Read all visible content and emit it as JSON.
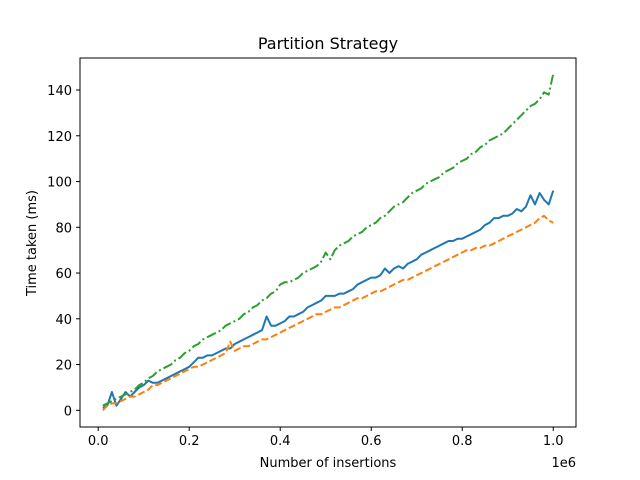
{
  "chart_data": {
    "type": "line",
    "title": "Partition Strategy",
    "xlabel": "Number of insertions",
    "ylabel": "Time taken (ms)",
    "x_offset_label": "1e6",
    "xlim": [
      -0.04,
      1.05
    ],
    "ylim": [
      -7.3,
      154
    ],
    "xticks": [
      0.0,
      0.2,
      0.4,
      0.6,
      0.8,
      1.0
    ],
    "xtick_labels": [
      "0.0",
      "0.2",
      "0.4",
      "0.6",
      "0.8",
      "1.0"
    ],
    "yticks": [
      0,
      20,
      40,
      60,
      80,
      100,
      120,
      140
    ],
    "ytick_labels": [
      "0",
      "20",
      "40",
      "60",
      "80",
      "100",
      "120",
      "140"
    ],
    "grid": false,
    "legend": "none",
    "x": [
      0.01,
      0.02,
      0.03,
      0.04,
      0.05,
      0.06,
      0.07,
      0.08,
      0.09,
      0.1,
      0.11,
      0.12,
      0.13,
      0.14,
      0.15,
      0.16,
      0.17,
      0.18,
      0.19,
      0.2,
      0.21,
      0.22,
      0.23,
      0.24,
      0.25,
      0.26,
      0.27,
      0.28,
      0.29,
      0.3,
      0.31,
      0.32,
      0.33,
      0.34,
      0.35,
      0.36,
      0.37,
      0.38,
      0.39,
      0.4,
      0.41,
      0.42,
      0.43,
      0.44,
      0.45,
      0.46,
      0.47,
      0.48,
      0.49,
      0.5,
      0.51,
      0.52,
      0.53,
      0.54,
      0.55,
      0.56,
      0.57,
      0.58,
      0.59,
      0.6,
      0.61,
      0.62,
      0.63,
      0.64,
      0.65,
      0.66,
      0.67,
      0.68,
      0.69,
      0.7,
      0.71,
      0.72,
      0.73,
      0.74,
      0.75,
      0.76,
      0.77,
      0.78,
      0.79,
      0.8,
      0.81,
      0.82,
      0.83,
      0.84,
      0.85,
      0.86,
      0.87,
      0.88,
      0.89,
      0.9,
      0.91,
      0.92,
      0.93,
      0.94,
      0.95,
      0.96,
      0.97,
      0.98,
      0.99,
      1.0
    ],
    "series": [
      {
        "color": "#1f77b4",
        "dash": "solid",
        "values": [
          1,
          2,
          8,
          2,
          5,
          8,
          6,
          8,
          10,
          11,
          13,
          12,
          12,
          13,
          14,
          15,
          16,
          17,
          18,
          19,
          21,
          23,
          23,
          24,
          24,
          25,
          26,
          27,
          27,
          29,
          30,
          31,
          32,
          33,
          34,
          35,
          41,
          37,
          37,
          38,
          39,
          41,
          41,
          42,
          43,
          45,
          46,
          47,
          48,
          50,
          50,
          50,
          51,
          51,
          52,
          53,
          55,
          56,
          57,
          58,
          58,
          59,
          62,
          60,
          62,
          63,
          62,
          64,
          65,
          66,
          68,
          69,
          70,
          71,
          72,
          73,
          74,
          74,
          75,
          75,
          76,
          77,
          78,
          79,
          81,
          82,
          84,
          84,
          85,
          85,
          86,
          88,
          87,
          89,
          94,
          90,
          95,
          92,
          90,
          96
        ]
      },
      {
        "color": "#ff7f0e",
        "dash": "dashed",
        "values": [
          0,
          2,
          3,
          3,
          4,
          5,
          6,
          6,
          7,
          8,
          9,
          11,
          11,
          12,
          13,
          14,
          15,
          16,
          17,
          18,
          19,
          19,
          20,
          21,
          22,
          23,
          24,
          25,
          30,
          26,
          27,
          28,
          28,
          29,
          30,
          31,
          31,
          32,
          33,
          34,
          35,
          36,
          37,
          38,
          39,
          40,
          41,
          42,
          42,
          43,
          44,
          45,
          45,
          46,
          47,
          48,
          49,
          49,
          50,
          51,
          52,
          52,
          53,
          54,
          55,
          56,
          57,
          57,
          58,
          59,
          60,
          61,
          62,
          63,
          64,
          65,
          66,
          67,
          68,
          69,
          70,
          70,
          71,
          71,
          72,
          72,
          73,
          74,
          75,
          76,
          77,
          78,
          79,
          80,
          81,
          82,
          84,
          85,
          83,
          82
        ]
      },
      {
        "color": "#2ca02c",
        "dash": "dashdot",
        "values": [
          2,
          3,
          4,
          5,
          6,
          7,
          8,
          9,
          11,
          12,
          14,
          15,
          17,
          18,
          19,
          20,
          22,
          23,
          25,
          26,
          28,
          29,
          31,
          32,
          33,
          34,
          35,
          37,
          38,
          39,
          40,
          42,
          43,
          45,
          46,
          48,
          49,
          51,
          52,
          55,
          56,
          56,
          57,
          58,
          60,
          61,
          62,
          63,
          65,
          69,
          66,
          70,
          72,
          73,
          74,
          76,
          77,
          78,
          80,
          81,
          82,
          84,
          85,
          87,
          89,
          90,
          91,
          93,
          95,
          96,
          97,
          99,
          100,
          101,
          102,
          104,
          105,
          106,
          108,
          109,
          110,
          112,
          113,
          115,
          116,
          118,
          119,
          120,
          121,
          123,
          125,
          127,
          129,
          131,
          133,
          134,
          136,
          139,
          138,
          147
        ]
      }
    ]
  }
}
